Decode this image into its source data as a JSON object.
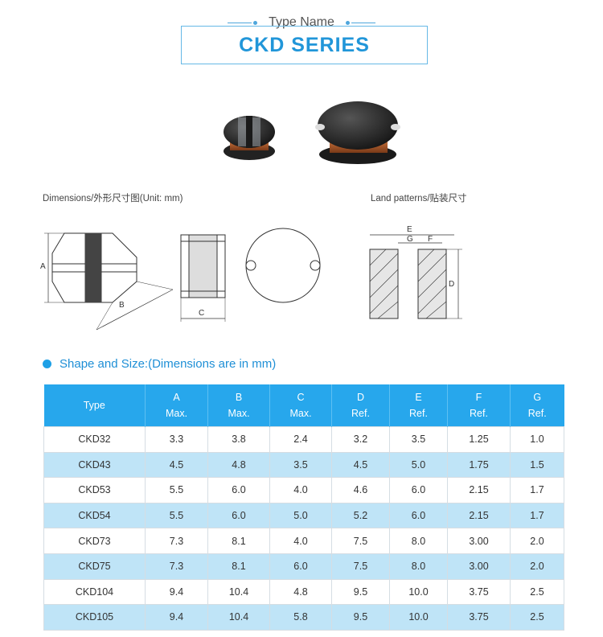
{
  "header": {
    "type_name": "Type Name",
    "series": "CKD SERIES"
  },
  "captions": {
    "dimensions": "Dimensions/外形尺寸图(Unit: mm)",
    "land_patterns": "Land patterns/贴装尺寸"
  },
  "drawing_labels": {
    "a": "A",
    "b": "B",
    "c": "C",
    "d": "D",
    "e": "E",
    "f": "F",
    "g": "G"
  },
  "section": {
    "title": "Shape and Size:(Dimensions are in mm)"
  },
  "table": {
    "headers": [
      {
        "top": "Type",
        "bottom": ""
      },
      {
        "top": "A",
        "bottom": "Max."
      },
      {
        "top": "B",
        "bottom": "Max."
      },
      {
        "top": "C",
        "bottom": "Max."
      },
      {
        "top": "D",
        "bottom": "Ref."
      },
      {
        "top": "E",
        "bottom": "Ref."
      },
      {
        "top": "F",
        "bottom": "Ref."
      },
      {
        "top": "G",
        "bottom": "Ref."
      }
    ],
    "rows": [
      [
        "CKD32",
        "3.3",
        "3.8",
        "2.4",
        "3.2",
        "3.5",
        "1.25",
        "1.0"
      ],
      [
        "CKD43",
        "4.5",
        "4.8",
        "3.5",
        "4.5",
        "5.0",
        "1.75",
        "1.5"
      ],
      [
        "CKD53",
        "5.5",
        "6.0",
        "4.0",
        "4.6",
        "6.0",
        "2.15",
        "1.7"
      ],
      [
        "CKD54",
        "5.5",
        "6.0",
        "5.0",
        "5.2",
        "6.0",
        "2.15",
        "1.7"
      ],
      [
        "CKD73",
        "7.3",
        "8.1",
        "4.0",
        "7.5",
        "8.0",
        "3.00",
        "2.0"
      ],
      [
        "CKD75",
        "7.3",
        "8.1",
        "6.0",
        "7.5",
        "8.0",
        "3.00",
        "2.0"
      ],
      [
        "CKD104",
        "9.4",
        "10.4",
        "4.8",
        "9.5",
        "10.0",
        "3.75",
        "2.5"
      ],
      [
        "CKD105",
        "9.4",
        "10.4",
        "5.8",
        "9.5",
        "10.0",
        "3.75",
        "2.5"
      ]
    ]
  },
  "colors": {
    "accent": "#27a7ec",
    "row_alt": "#bfe4f7",
    "title": "#2196d9"
  }
}
